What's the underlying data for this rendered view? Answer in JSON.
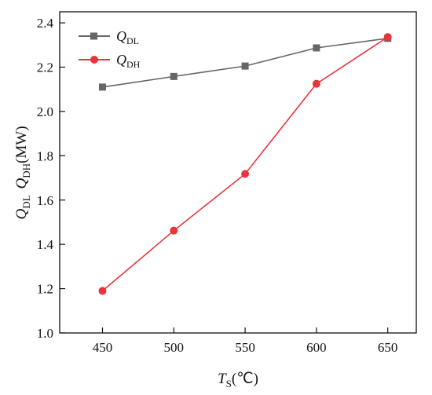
{
  "chart_data": {
    "type": "line",
    "x": [
      450,
      500,
      550,
      600,
      650
    ],
    "xticks": [
      450,
      500,
      550,
      600,
      650
    ],
    "yticks": [
      "1.0",
      "1.2",
      "1.4",
      "1.6",
      "1.8",
      "2.0",
      "2.2",
      "2.4"
    ],
    "xlim": [
      420,
      670
    ],
    "ylim": [
      1.0,
      2.45
    ],
    "xlabel": {
      "main": "T",
      "sub": "S",
      "rest": "(℃)"
    },
    "ylabel": {
      "q1": "Q",
      "q1sub": "DL",
      "q2": "Q",
      "q2sub": "DH",
      "rest": "(MW)"
    },
    "legend_position": "top-left",
    "grid": false,
    "series": [
      {
        "name": "Q",
        "name_sub": "DL",
        "marker": "square",
        "color": "#666666",
        "values": [
          2.11,
          2.158,
          2.205,
          2.287,
          2.33
        ]
      },
      {
        "name": "Q",
        "name_sub": "DH",
        "marker": "circle",
        "color": "#e8343b",
        "values": [
          1.19,
          1.462,
          1.718,
          2.125,
          2.336
        ]
      }
    ]
  }
}
